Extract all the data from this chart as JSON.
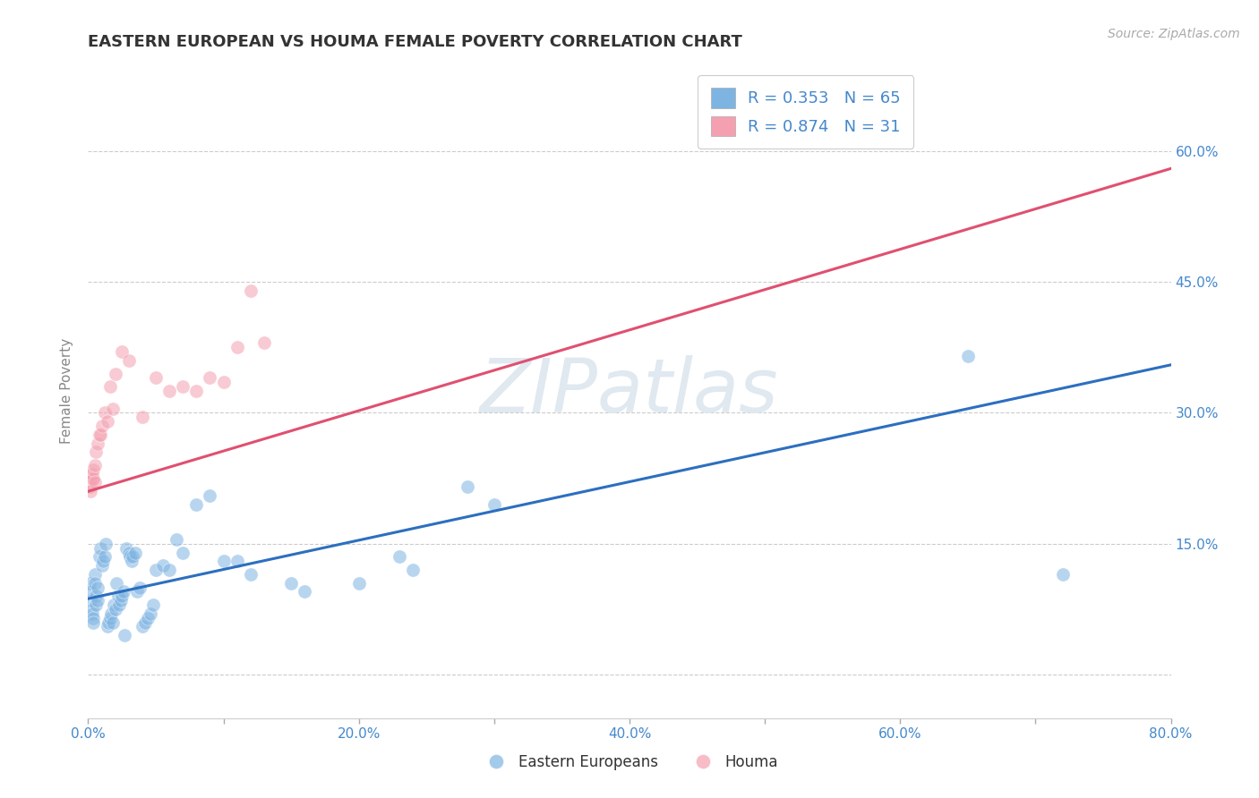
{
  "title": "EASTERN EUROPEAN VS HOUMA FEMALE POVERTY CORRELATION CHART",
  "source": "Source: ZipAtlas.com",
  "ylabel": "Female Poverty",
  "xlim": [
    0.0,
    0.8
  ],
  "ylim": [
    -0.05,
    0.7
  ],
  "xticks": [
    0.0,
    0.1,
    0.2,
    0.3,
    0.4,
    0.5,
    0.6,
    0.7,
    0.8
  ],
  "xtick_labels": [
    "0.0%",
    "",
    "20.0%",
    "",
    "40.0%",
    "",
    "60.0%",
    "",
    "80.0%"
  ],
  "yticks": [
    0.0,
    0.15,
    0.3,
    0.45,
    0.6
  ],
  "right_ytick_labels": [
    "",
    "15.0%",
    "30.0%",
    "45.0%",
    "60.0%"
  ],
  "blue_color": "#7EB4E2",
  "pink_color": "#F4A0B0",
  "line_blue": "#2C6FBF",
  "line_pink": "#E05070",
  "R_blue": 0.353,
  "N_blue": 65,
  "R_pink": 0.874,
  "N_pink": 31,
  "legend_label_blue": "Eastern Europeans",
  "legend_label_pink": "Houma",
  "watermark": "ZIPatlas",
  "blue_scatter": [
    [
      0.001,
      0.105
    ],
    [
      0.002,
      0.085
    ],
    [
      0.002,
      0.095
    ],
    [
      0.003,
      0.075
    ],
    [
      0.003,
      0.07
    ],
    [
      0.004,
      0.065
    ],
    [
      0.004,
      0.06
    ],
    [
      0.005,
      0.115
    ],
    [
      0.005,
      0.105
    ],
    [
      0.006,
      0.09
    ],
    [
      0.006,
      0.08
    ],
    [
      0.007,
      0.085
    ],
    [
      0.007,
      0.1
    ],
    [
      0.008,
      0.135
    ],
    [
      0.009,
      0.145
    ],
    [
      0.01,
      0.125
    ],
    [
      0.011,
      0.13
    ],
    [
      0.012,
      0.135
    ],
    [
      0.013,
      0.15
    ],
    [
      0.014,
      0.055
    ],
    [
      0.015,
      0.06
    ],
    [
      0.016,
      0.065
    ],
    [
      0.017,
      0.07
    ],
    [
      0.018,
      0.06
    ],
    [
      0.019,
      0.08
    ],
    [
      0.02,
      0.075
    ],
    [
      0.021,
      0.105
    ],
    [
      0.022,
      0.09
    ],
    [
      0.023,
      0.08
    ],
    [
      0.024,
      0.085
    ],
    [
      0.025,
      0.09
    ],
    [
      0.026,
      0.095
    ],
    [
      0.027,
      0.045
    ],
    [
      0.028,
      0.145
    ],
    [
      0.03,
      0.14
    ],
    [
      0.031,
      0.135
    ],
    [
      0.032,
      0.13
    ],
    [
      0.033,
      0.135
    ],
    [
      0.035,
      0.14
    ],
    [
      0.036,
      0.095
    ],
    [
      0.038,
      0.1
    ],
    [
      0.04,
      0.055
    ],
    [
      0.042,
      0.06
    ],
    [
      0.044,
      0.065
    ],
    [
      0.046,
      0.07
    ],
    [
      0.048,
      0.08
    ],
    [
      0.05,
      0.12
    ],
    [
      0.055,
      0.125
    ],
    [
      0.06,
      0.12
    ],
    [
      0.065,
      0.155
    ],
    [
      0.07,
      0.14
    ],
    [
      0.08,
      0.195
    ],
    [
      0.09,
      0.205
    ],
    [
      0.1,
      0.13
    ],
    [
      0.11,
      0.13
    ],
    [
      0.12,
      0.115
    ],
    [
      0.15,
      0.105
    ],
    [
      0.16,
      0.095
    ],
    [
      0.2,
      0.105
    ],
    [
      0.23,
      0.135
    ],
    [
      0.24,
      0.12
    ],
    [
      0.28,
      0.215
    ],
    [
      0.3,
      0.195
    ],
    [
      0.65,
      0.365
    ],
    [
      0.72,
      0.115
    ]
  ],
  "pink_scatter": [
    [
      0.001,
      0.22
    ],
    [
      0.002,
      0.215
    ],
    [
      0.002,
      0.21
    ],
    [
      0.003,
      0.225
    ],
    [
      0.003,
      0.23
    ],
    [
      0.004,
      0.225
    ],
    [
      0.004,
      0.235
    ],
    [
      0.005,
      0.22
    ],
    [
      0.005,
      0.24
    ],
    [
      0.006,
      0.255
    ],
    [
      0.007,
      0.265
    ],
    [
      0.008,
      0.275
    ],
    [
      0.009,
      0.275
    ],
    [
      0.01,
      0.285
    ],
    [
      0.012,
      0.3
    ],
    [
      0.014,
      0.29
    ],
    [
      0.016,
      0.33
    ],
    [
      0.018,
      0.305
    ],
    [
      0.02,
      0.345
    ],
    [
      0.025,
      0.37
    ],
    [
      0.03,
      0.36
    ],
    [
      0.04,
      0.295
    ],
    [
      0.05,
      0.34
    ],
    [
      0.06,
      0.325
    ],
    [
      0.07,
      0.33
    ],
    [
      0.08,
      0.325
    ],
    [
      0.09,
      0.34
    ],
    [
      0.1,
      0.335
    ],
    [
      0.11,
      0.375
    ],
    [
      0.12,
      0.44
    ],
    [
      0.13,
      0.38
    ]
  ],
  "blue_line_x": [
    0.0,
    0.8
  ],
  "blue_line_y": [
    0.087,
    0.355
  ],
  "pink_line_x": [
    0.0,
    0.8
  ],
  "pink_line_y": [
    0.21,
    0.58
  ],
  "grid_color": "#CCCCCC",
  "bg_color": "#FFFFFF",
  "plot_bg": "#FFFFFF",
  "title_color": "#333333",
  "axis_label_color": "#888888",
  "tick_label_color": "#4488CC",
  "watermark_color": "#E0E8F0"
}
